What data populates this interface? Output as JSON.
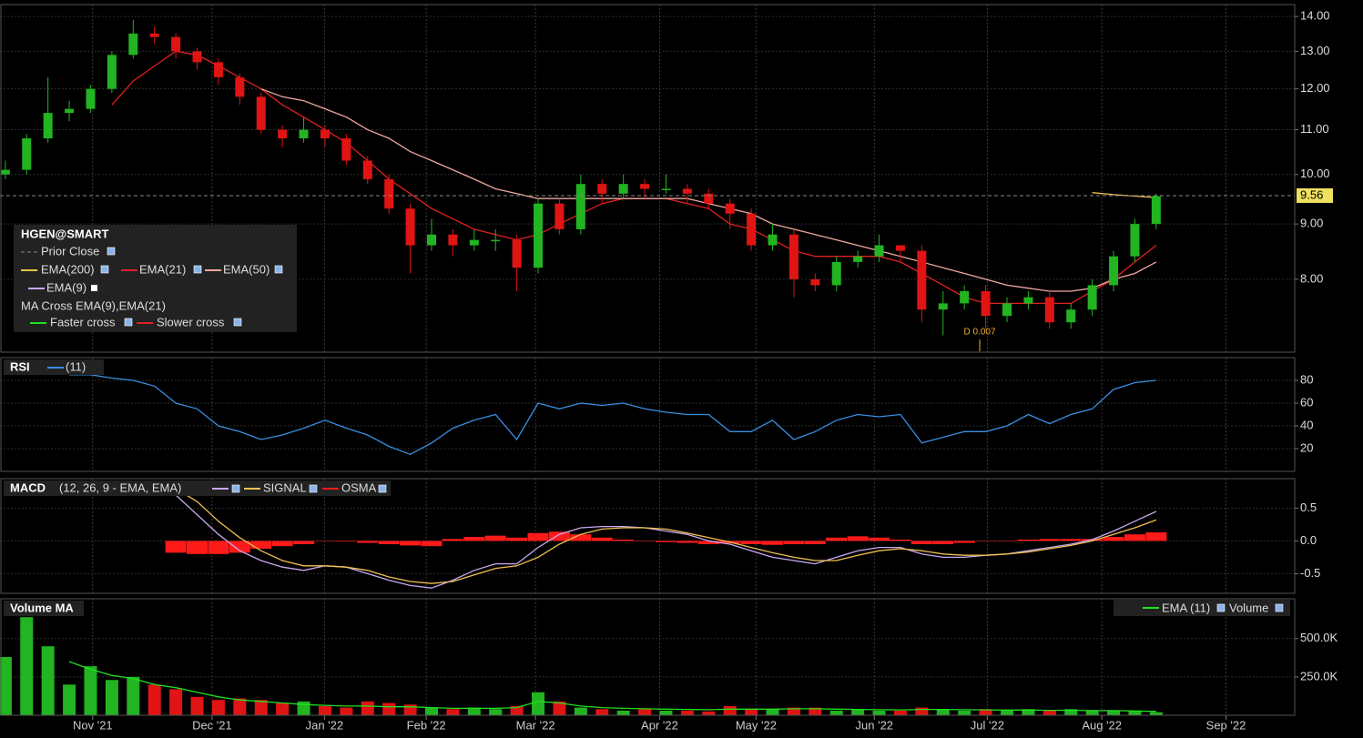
{
  "chart_data": [
    {
      "type": "candlestick",
      "title": "HGEN@SMART",
      "x": [
        0,
        4,
        8,
        12,
        16,
        20,
        24,
        28,
        32,
        36,
        40,
        44,
        48,
        52,
        56,
        60,
        64,
        68,
        72,
        76,
        80,
        84,
        88,
        92,
        96,
        100,
        104,
        108,
        112,
        116,
        120,
        124,
        128,
        132,
        136,
        140,
        144,
        148,
        152,
        156,
        160,
        164,
        168,
        172,
        176,
        180,
        184,
        188,
        192,
        196,
        200,
        204,
        208,
        212,
        216
      ],
      "open": [
        10.0,
        10.1,
        10.8,
        11.4,
        11.5,
        12.0,
        12.9,
        13.5,
        13.4,
        13.0,
        12.7,
        12.3,
        11.8,
        11.0,
        10.8,
        11.0,
        10.8,
        10.3,
        9.9,
        9.3,
        8.6,
        8.8,
        8.6,
        8.7,
        8.7,
        8.2,
        9.4,
        8.9,
        9.8,
        9.6,
        9.8,
        9.7,
        9.7,
        9.6,
        9.4,
        9.2,
        8.6,
        8.8,
        8.0,
        7.9,
        8.3,
        8.4,
        8.6,
        8.5,
        7.5,
        7.6,
        7.8,
        7.4,
        7.6,
        7.7,
        7.3,
        7.5,
        7.9,
        8.4,
        9.0
      ],
      "high": [
        10.3,
        10.9,
        12.3,
        11.7,
        12.1,
        13.0,
        13.9,
        13.7,
        13.5,
        13.1,
        12.8,
        12.4,
        11.9,
        11.1,
        11.3,
        11.1,
        10.9,
        10.4,
        10.0,
        9.4,
        9.1,
        8.9,
        8.9,
        8.9,
        8.8,
        9.5,
        9.5,
        10.0,
        9.9,
        10.0,
        9.9,
        10.0,
        9.8,
        9.7,
        9.5,
        9.3,
        9.0,
        8.9,
        8.1,
        8.4,
        8.5,
        8.8,
        8.6,
        8.6,
        7.8,
        7.9,
        7.9,
        7.7,
        7.8,
        7.8,
        7.6,
        8.0,
        8.5,
        9.1,
        9.6
      ],
      "low": [
        9.9,
        10.0,
        10.7,
        11.2,
        11.4,
        11.9,
        12.8,
        13.2,
        12.8,
        12.5,
        12.1,
        11.6,
        10.9,
        10.6,
        10.7,
        10.6,
        10.2,
        9.8,
        9.2,
        8.1,
        8.5,
        8.4,
        8.5,
        8.5,
        7.8,
        8.1,
        8.8,
        8.8,
        9.4,
        9.5,
        9.5,
        9.6,
        9.4,
        9.3,
        8.9,
        8.5,
        8.5,
        7.7,
        7.8,
        7.8,
        8.2,
        8.3,
        8.3,
        7.3,
        7.1,
        7.5,
        7.2,
        7.3,
        7.5,
        7.2,
        7.2,
        7.4,
        7.8,
        8.3,
        8.9
      ],
      "close": [
        10.1,
        10.8,
        11.4,
        11.5,
        12.0,
        12.9,
        13.5,
        13.4,
        13.0,
        12.7,
        12.3,
        11.8,
        11.0,
        10.8,
        11.0,
        10.8,
        10.3,
        9.9,
        9.3,
        8.6,
        8.8,
        8.6,
        8.7,
        8.7,
        8.2,
        9.4,
        8.9,
        9.8,
        9.6,
        9.8,
        9.7,
        9.7,
        9.6,
        9.4,
        9.2,
        8.6,
        8.8,
        8.0,
        7.9,
        8.3,
        8.4,
        8.6,
        8.5,
        7.5,
        7.6,
        7.8,
        7.4,
        7.6,
        7.7,
        7.3,
        7.5,
        7.9,
        8.4,
        9.0,
        9.55
      ],
      "up_color": "#22b422",
      "down_color": "#e01414",
      "series": [
        {
          "name": "EMA(200)",
          "color": "#f0c050",
          "values": [
            null,
            null,
            null,
            null,
            null,
            null,
            null,
            null,
            null,
            null,
            null,
            null,
            null,
            null,
            null,
            null,
            null,
            null,
            null,
            null,
            null,
            null,
            null,
            null,
            null,
            null,
            null,
            null,
            null,
            null,
            null,
            null,
            null,
            null,
            null,
            null,
            null,
            null,
            null,
            null,
            null,
            null,
            null,
            null,
            null,
            null,
            null,
            null,
            null,
            null,
            null,
            9.62,
            9.58,
            9.55,
            9.52
          ]
        },
        {
          "name": "EMA(21)",
          "color": "#e02020",
          "values": [
            null,
            null,
            null,
            null,
            null,
            11.6,
            12.2,
            12.6,
            13.0,
            12.9,
            12.6,
            12.3,
            12.0,
            11.6,
            11.3,
            11.0,
            10.7,
            10.3,
            9.9,
            9.6,
            9.3,
            9.1,
            8.9,
            8.8,
            8.7,
            8.8,
            9.0,
            9.2,
            9.4,
            9.5,
            9.5,
            9.5,
            9.4,
            9.3,
            9.0,
            8.9,
            8.7,
            8.5,
            8.4,
            8.4,
            8.4,
            8.4,
            8.3,
            8.1,
            7.9,
            7.7,
            7.6,
            7.6,
            7.6,
            7.6,
            7.6,
            7.8,
            8.0,
            8.3,
            8.6
          ]
        },
        {
          "name": "EMA(50)",
          "color": "#f0a8a0",
          "values": [
            null,
            null,
            null,
            null,
            null,
            null,
            null,
            null,
            null,
            null,
            null,
            null,
            12.0,
            11.8,
            11.7,
            11.5,
            11.3,
            11.0,
            10.8,
            10.5,
            10.3,
            10.1,
            9.9,
            9.7,
            9.6,
            9.5,
            9.5,
            9.5,
            9.5,
            9.5,
            9.5,
            9.5,
            9.5,
            9.4,
            9.3,
            9.2,
            9.0,
            8.9,
            8.8,
            8.7,
            8.6,
            8.5,
            8.4,
            8.3,
            8.2,
            8.1,
            8.0,
            7.9,
            7.85,
            7.8,
            7.8,
            7.85,
            8.0,
            8.1,
            8.3
          ]
        },
        {
          "name": "EMA(9)",
          "color": "#c8a8f0",
          "values": [
            null,
            null,
            null,
            null,
            null,
            null,
            null,
            null,
            null,
            null,
            null,
            null,
            null,
            null,
            null,
            null,
            null,
            null,
            null,
            null,
            null,
            null,
            null,
            null,
            null,
            null,
            null,
            null,
            null,
            null,
            null,
            null,
            null,
            null,
            null,
            null,
            null,
            null,
            null,
            null,
            null,
            null,
            null,
            null,
            null,
            null,
            null,
            null,
            null,
            null,
            null,
            null,
            null,
            null,
            null
          ]
        }
      ],
      "legend_extra": [
        "Prior Close",
        "MA Cross EMA(9),EMA(21)",
        "Faster cross",
        "Slower cross"
      ],
      "prior_close": 9.56,
      "annotation": "D 0.007",
      "log": true,
      "ylim": [
        6.85,
        14.36
      ],
      "yticks": [
        {
          "value": 8,
          "label": "8.00"
        },
        {
          "value": 9,
          "label": "9.00"
        },
        {
          "value": 10,
          "label": "10.00"
        },
        {
          "value": 11,
          "label": "11.00"
        },
        {
          "value": 12,
          "label": "12.00"
        },
        {
          "value": 13,
          "label": "13.00"
        },
        {
          "value": 14,
          "label": "14.00"
        }
      ],
      "xlim": [
        -1,
        242
      ],
      "xticks": [
        {
          "value": 16.4,
          "label": "Nov '21"
        },
        {
          "value": 38.8,
          "label": "Dec '21"
        },
        {
          "value": 59.9,
          "label": "Jan '22"
        },
        {
          "value": 79,
          "label": "Feb '22"
        },
        {
          "value": 99.5,
          "label": "Mar '22"
        },
        {
          "value": 122.8,
          "label": "Apr '22"
        },
        {
          "value": 140.9,
          "label": "May '22"
        },
        {
          "value": 163.1,
          "label": "Jun '22"
        },
        {
          "value": 184.3,
          "label": "Jul '22"
        },
        {
          "value": 205.8,
          "label": "Aug '22"
        },
        {
          "value": 229.1,
          "label": "Sep '22"
        }
      ]
    },
    {
      "type": "line",
      "title": "RSI",
      "ylim": [
        0,
        100
      ],
      "yticks": [
        20,
        40,
        60,
        80
      ],
      "series": [
        {
          "name": "(11)",
          "color": "#3a8ee0",
          "values": [
            null,
            null,
            null,
            85,
            85,
            82,
            80,
            75,
            60,
            55,
            40,
            35,
            28,
            32,
            38,
            45,
            38,
            32,
            22,
            15,
            25,
            38,
            45,
            50,
            28,
            60,
            55,
            60,
            58,
            60,
            55,
            52,
            50,
            50,
            35,
            35,
            45,
            28,
            35,
            45,
            50,
            48,
            50,
            25,
            30,
            35,
            35,
            40,
            50,
            42,
            50,
            55,
            72,
            78,
            80
          ]
        }
      ]
    },
    {
      "type": "macd",
      "title": "MACD",
      "subtitle": "(12, 26, 9 - EMA, EMA)",
      "ylim": [
        -0.8,
        0.95
      ],
      "yticks": [
        {
          "value": -0.5,
          "label": "-0.5"
        },
        {
          "value": 0,
          "label": "0.0"
        },
        {
          "value": 0.5,
          "label": "0.5"
        }
      ],
      "series": [
        {
          "color": "#c8a8f0",
          "values": [
            null,
            null,
            null,
            null,
            null,
            null,
            null,
            0.9,
            0.7,
            0.4,
            0.1,
            -0.15,
            -0.3,
            -0.4,
            -0.45,
            -0.38,
            -0.4,
            -0.5,
            -0.6,
            -0.68,
            -0.72,
            -0.6,
            -0.45,
            -0.35,
            -0.35,
            -0.1,
            0.1,
            0.2,
            0.22,
            0.22,
            0.2,
            0.15,
            0.1,
            0.0,
            -0.05,
            -0.15,
            -0.25,
            -0.3,
            -0.35,
            -0.25,
            -0.15,
            -0.1,
            -0.1,
            -0.2,
            -0.25,
            -0.25,
            -0.22,
            -0.2,
            -0.15,
            -0.1,
            -0.05,
            0.02,
            0.15,
            0.3,
            0.45
          ]
        },
        {
          "name": "SIGNAL",
          "color": "#f0c050",
          "values": [
            null,
            null,
            null,
            null,
            null,
            null,
            null,
            0.9,
            0.8,
            0.6,
            0.3,
            0.05,
            -0.15,
            -0.3,
            -0.38,
            -0.38,
            -0.4,
            -0.45,
            -0.55,
            -0.62,
            -0.65,
            -0.62,
            -0.52,
            -0.42,
            -0.38,
            -0.25,
            -0.05,
            0.1,
            0.18,
            0.2,
            0.2,
            0.18,
            0.12,
            0.05,
            -0.02,
            -0.1,
            -0.18,
            -0.25,
            -0.3,
            -0.3,
            -0.22,
            -0.15,
            -0.12,
            -0.15,
            -0.2,
            -0.22,
            -0.22,
            -0.2,
            -0.17,
            -0.12,
            -0.07,
            0.0,
            0.1,
            0.2,
            0.32
          ]
        },
        {
          "name": "OSMA",
          "color": "#ff1a1a",
          "bars": true,
          "values": [
            null,
            null,
            null,
            null,
            null,
            null,
            null,
            null,
            -0.18,
            -0.2,
            -0.2,
            -0.18,
            -0.12,
            -0.08,
            -0.05,
            0.0,
            -0.01,
            -0.03,
            -0.05,
            -0.07,
            -0.08,
            0.03,
            0.06,
            0.08,
            0.05,
            0.12,
            0.14,
            0.1,
            0.05,
            0.02,
            0.0,
            -0.02,
            -0.03,
            -0.05,
            -0.04,
            -0.05,
            -0.06,
            -0.05,
            -0.05,
            0.05,
            0.07,
            0.05,
            0.02,
            -0.05,
            -0.05,
            -0.03,
            0.0,
            0.0,
            0.02,
            0.03,
            0.03,
            0.03,
            0.06,
            0.1,
            0.13
          ]
        }
      ]
    },
    {
      "type": "volume",
      "title": "Volume MA",
      "ylim": [
        0,
        760000
      ],
      "yticks": [
        {
          "value": 250000,
          "label": "250.0K"
        },
        {
          "value": 500000,
          "label": "500.0K"
        }
      ],
      "series": [
        {
          "name": "EMA (11)",
          "color": "#22e022",
          "values": [
            null,
            null,
            null,
            350000,
            300000,
            260000,
            240000,
            200000,
            180000,
            150000,
            120000,
            100000,
            90000,
            80000,
            70000,
            65000,
            60000,
            60000,
            55000,
            55000,
            50000,
            45000,
            45000,
            45000,
            50000,
            90000,
            80000,
            60000,
            50000,
            45000,
            42000,
            40000,
            38000,
            36000,
            40000,
            40000,
            40000,
            42000,
            42000,
            40000,
            38000,
            36000,
            35000,
            38000,
            38000,
            36000,
            35000,
            34000,
            34000,
            32000,
            32000,
            30000,
            30000,
            28000,
            25000
          ]
        },
        {
          "name": "Volume",
          "bars": true,
          "values": [
            380000,
            640000,
            450000,
            200000,
            320000,
            230000,
            250000,
            200000,
            170000,
            120000,
            100000,
            110000,
            100000,
            80000,
            90000,
            60000,
            50000,
            90000,
            80000,
            70000,
            50000,
            40000,
            50000,
            40000,
            60000,
            150000,
            90000,
            50000,
            40000,
            30000,
            40000,
            30000,
            30000,
            25000,
            60000,
            40000,
            40000,
            50000,
            50000,
            30000,
            40000,
            30000,
            30000,
            50000,
            40000,
            30000,
            40000,
            30000,
            40000,
            30000,
            40000,
            30000,
            30000,
            30000,
            20000
          ]
        }
      ]
    }
  ]
}
